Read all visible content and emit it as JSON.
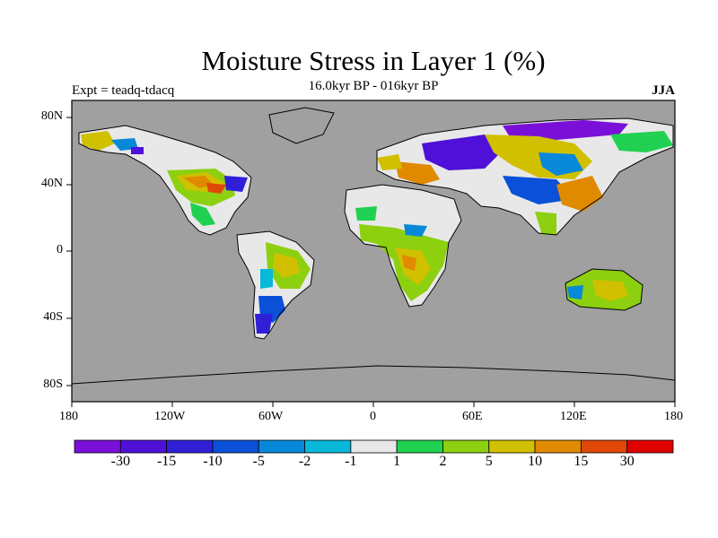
{
  "header": {
    "title": "Moisture Stress in Layer 1 (%)",
    "subtitle": "16.0kyr BP - 016kyr BP",
    "left_label": "Expt = teadq-tdacq",
    "right_label": "JJA"
  },
  "axes": {
    "x_ticks": [
      "180",
      "120W",
      "60W",
      "0",
      "60E",
      "120E",
      "180"
    ],
    "y_ticks": [
      "80N",
      "40N",
      "0",
      "40S",
      "80S"
    ]
  },
  "colorbar": {
    "labels": [
      "-30",
      "-15",
      "-10",
      "-5",
      "-2",
      "-1",
      "1",
      "2",
      "5",
      "10",
      "15",
      "30"
    ],
    "colors": [
      "#7a10d8",
      "#4f10d8",
      "#2f20d8",
      "#0a50d8",
      "#0888d8",
      "#08b8d8",
      "#e8e8e8",
      "#20d050",
      "#8cd010",
      "#d0c000",
      "#e08a00",
      "#e04808",
      "#e00000"
    ]
  },
  "map": {
    "background": "#a0a0a0",
    "projection": "cylindrical-equidistant",
    "lon_range": [
      -180,
      180
    ],
    "lat_range": [
      -90,
      90
    ]
  }
}
